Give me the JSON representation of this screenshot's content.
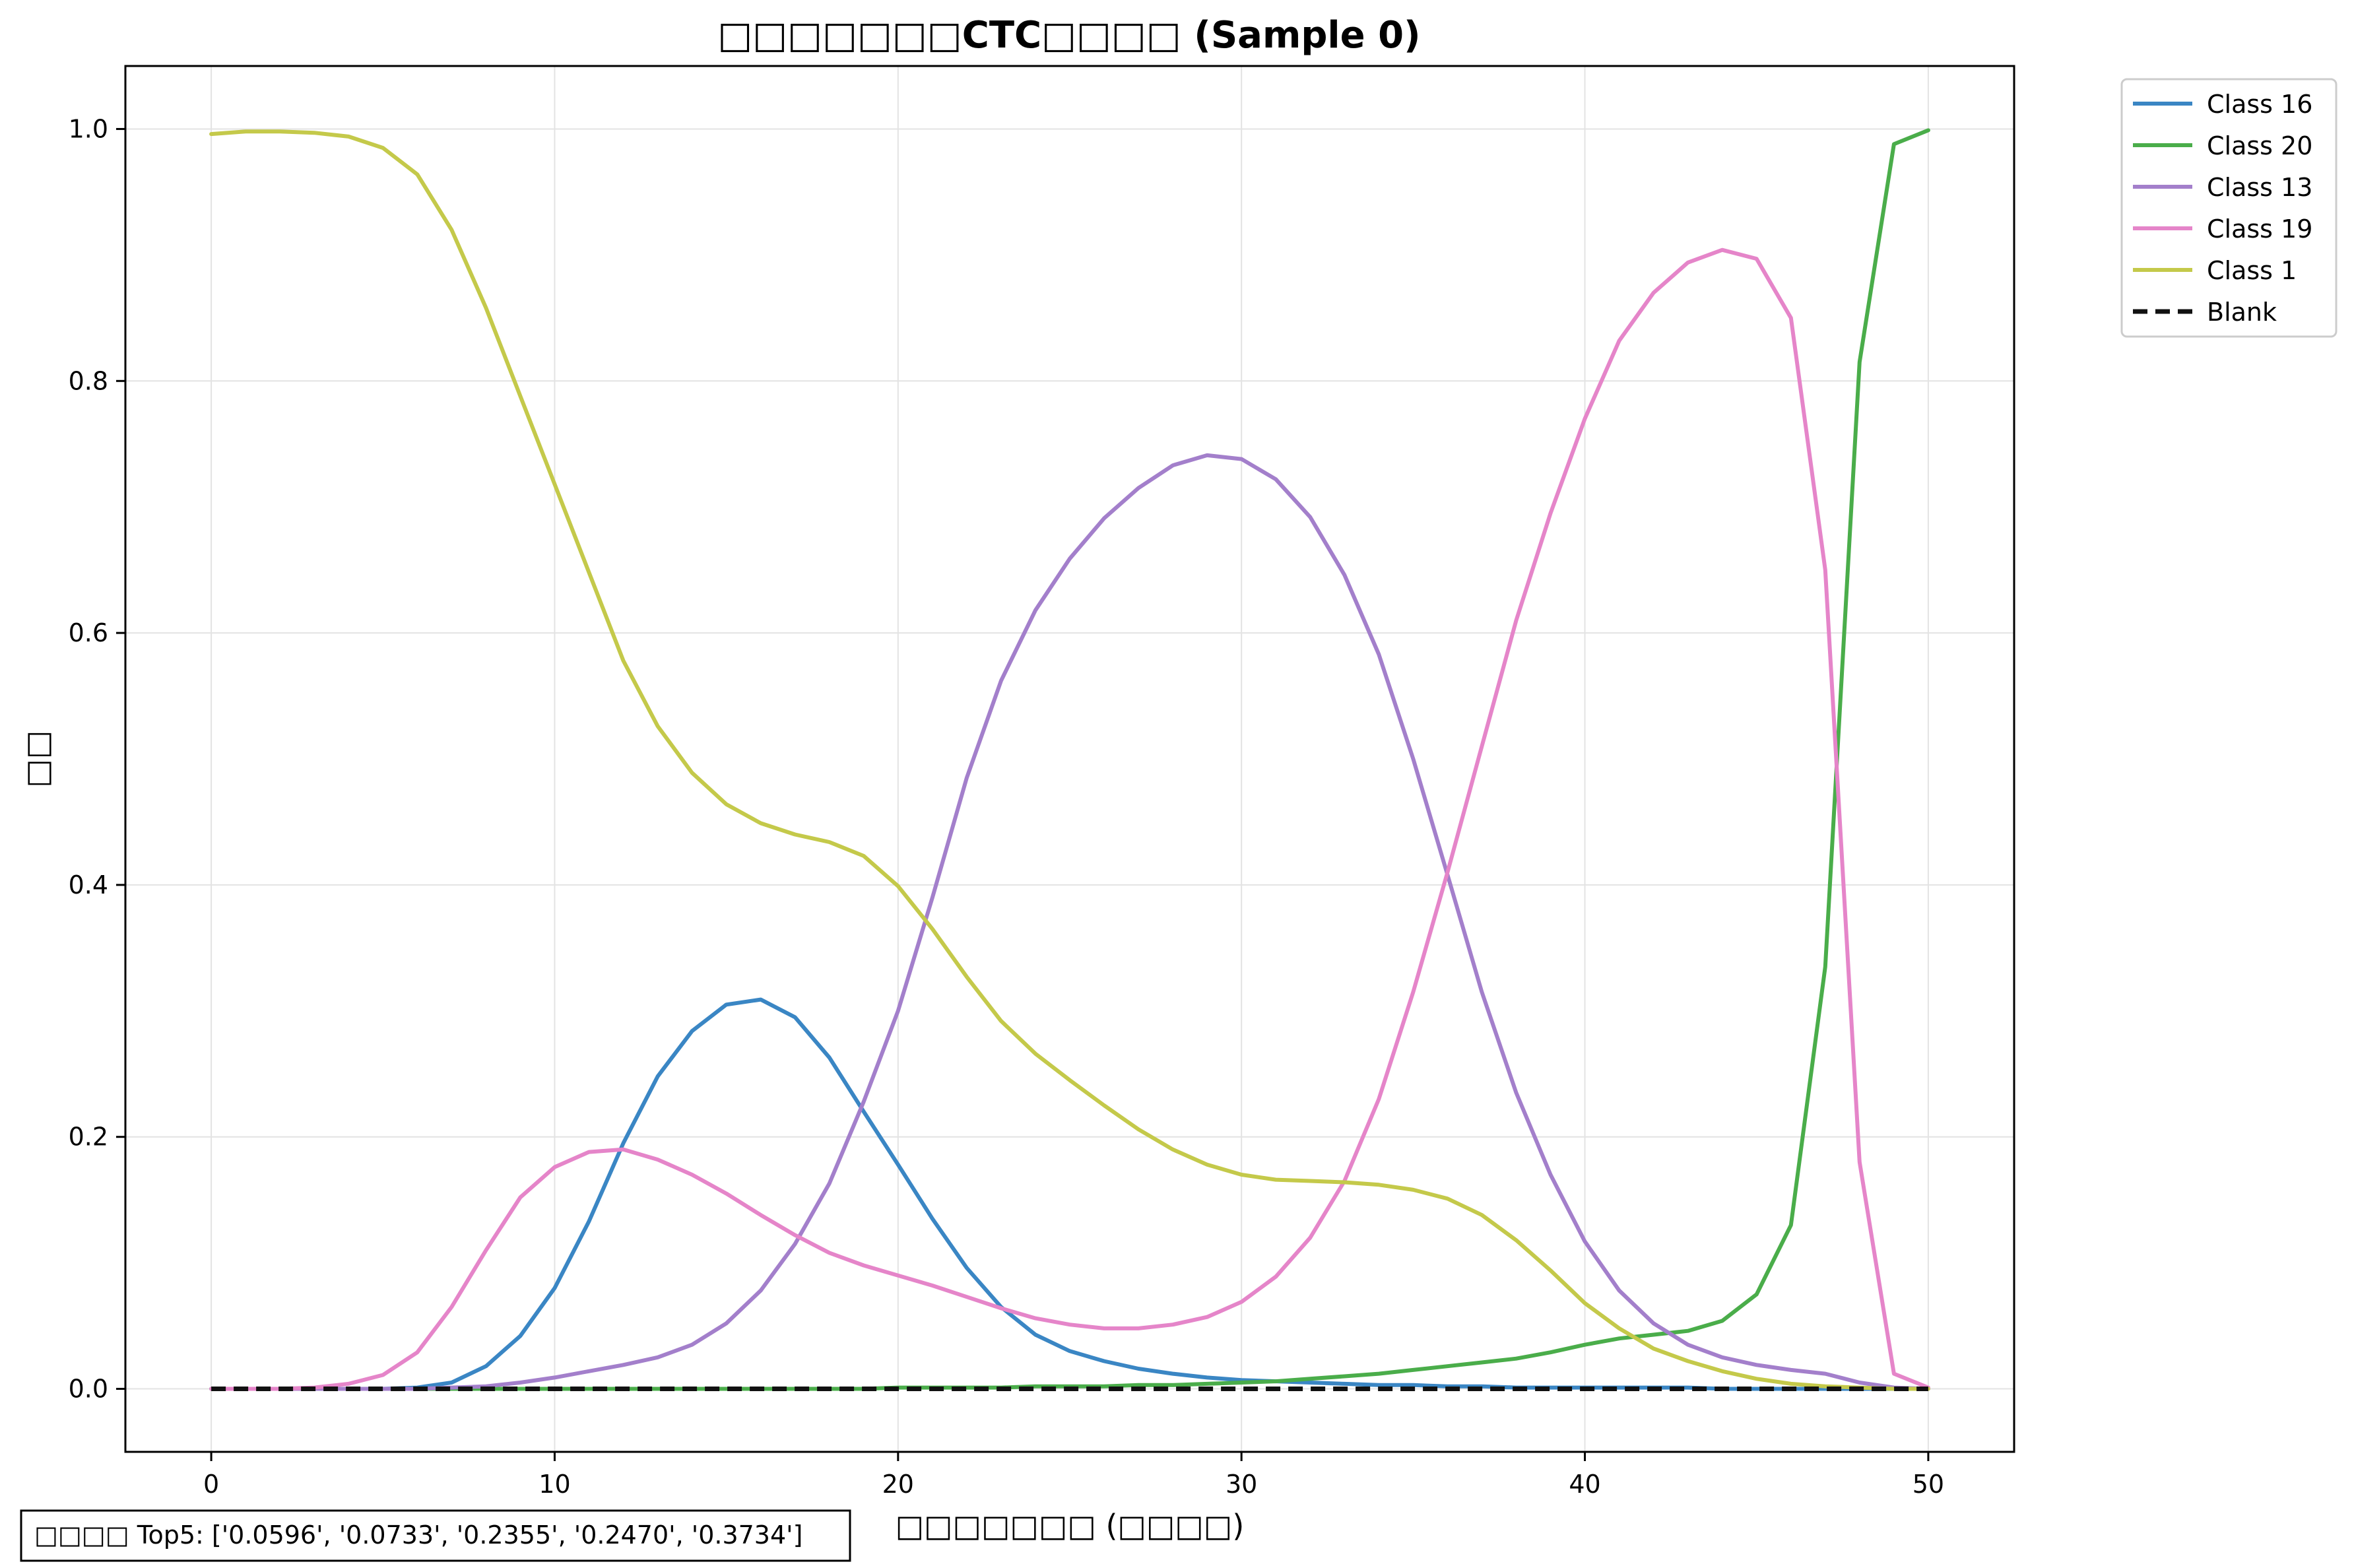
{
  "chart_data": {
    "type": "line",
    "title": "□□□□□□□CTC□□□□ (Sample 0)",
    "xlabel": "□□□□□□□ (□□□□)",
    "ylabel": "□□",
    "xlim": [
      -2.5,
      52.5
    ],
    "ylim": [
      -0.05,
      1.05
    ],
    "xticks": [
      0,
      10,
      20,
      30,
      40,
      50
    ],
    "xtick_labels": [
      "0",
      "10",
      "20",
      "30",
      "40",
      "50"
    ],
    "yticks": [
      0.0,
      0.2,
      0.4,
      0.6,
      0.8,
      1.0
    ],
    "ytick_labels": [
      "0.0",
      "0.2",
      "0.4",
      "0.6",
      "0.8",
      "1.0"
    ],
    "grid": true,
    "legend_position": "outside top-right",
    "x": [
      0,
      1,
      2,
      3,
      4,
      5,
      6,
      7,
      8,
      9,
      10,
      11,
      12,
      13,
      14,
      15,
      16,
      17,
      18,
      19,
      20,
      21,
      22,
      23,
      24,
      25,
      26,
      27,
      28,
      29,
      30,
      31,
      32,
      33,
      34,
      35,
      36,
      37,
      38,
      39,
      40,
      41,
      42,
      43,
      44,
      45,
      46,
      47,
      48,
      49,
      50
    ],
    "series": [
      {
        "name": "Class 16",
        "color": "#3a86c4",
        "dash": "solid",
        "values": [
          0,
          0,
          0,
          0,
          0,
          0,
          0.001,
          0.005,
          0.018,
          0.042,
          0.08,
          0.133,
          0.195,
          0.248,
          0.284,
          0.305,
          0.309,
          0.295,
          0.263,
          0.22,
          0.178,
          0.135,
          0.096,
          0.065,
          0.043,
          0.03,
          0.022,
          0.016,
          0.012,
          0.009,
          0.007,
          0.006,
          0.005,
          0.004,
          0.003,
          0.003,
          0.002,
          0.002,
          0.001,
          0.001,
          0.001,
          0.001,
          0.001,
          0.001,
          0,
          0,
          0,
          0,
          0,
          0,
          0
        ]
      },
      {
        "name": "Class 20",
        "color": "#4aad4a",
        "dash": "solid",
        "values": [
          0,
          0,
          0,
          0,
          0,
          0,
          0,
          0,
          0,
          0,
          0,
          0,
          0,
          0,
          0,
          0,
          0,
          0,
          0,
          0,
          0.001,
          0.001,
          0.001,
          0.001,
          0.002,
          0.002,
          0.002,
          0.003,
          0.003,
          0.004,
          0.005,
          0.006,
          0.008,
          0.01,
          0.012,
          0.015,
          0.018,
          0.021,
          0.024,
          0.029,
          0.035,
          0.04,
          0.043,
          0.046,
          0.054,
          0.075,
          0.13,
          0.335,
          0.815,
          0.988,
          0.999
        ]
      },
      {
        "name": "Class 13",
        "color": "#a37fcb",
        "dash": "solid",
        "values": [
          0,
          0,
          0,
          0,
          0,
          0,
          0,
          0.001,
          0.002,
          0.005,
          0.009,
          0.014,
          0.019,
          0.025,
          0.035,
          0.052,
          0.078,
          0.115,
          0.163,
          0.228,
          0.3,
          0.39,
          0.485,
          0.562,
          0.618,
          0.659,
          0.691,
          0.715,
          0.733,
          0.741,
          0.738,
          0.722,
          0.692,
          0.646,
          0.583,
          0.5,
          0.408,
          0.315,
          0.235,
          0.17,
          0.117,
          0.078,
          0.052,
          0.035,
          0.025,
          0.019,
          0.015,
          0.012,
          0.005,
          0.001,
          0
        ]
      },
      {
        "name": "Class 19",
        "color": "#e585c9",
        "dash": "solid",
        "values": [
          0,
          0,
          0,
          0.001,
          0.004,
          0.011,
          0.029,
          0.065,
          0.11,
          0.152,
          0.176,
          0.188,
          0.19,
          0.182,
          0.17,
          0.155,
          0.138,
          0.122,
          0.108,
          0.098,
          0.09,
          0.082,
          0.073,
          0.064,
          0.056,
          0.051,
          0.048,
          0.048,
          0.051,
          0.057,
          0.069,
          0.089,
          0.12,
          0.165,
          0.23,
          0.315,
          0.41,
          0.51,
          0.61,
          0.695,
          0.77,
          0.832,
          0.87,
          0.894,
          0.904,
          0.897,
          0.85,
          0.65,
          0.18,
          0.012,
          0.001
        ]
      },
      {
        "name": "Class 1",
        "color": "#c4c94a",
        "dash": "solid",
        "values": [
          0.996,
          0.998,
          0.998,
          0.997,
          0.994,
          0.985,
          0.964,
          0.92,
          0.858,
          0.788,
          0.718,
          0.648,
          0.578,
          0.526,
          0.489,
          0.464,
          0.449,
          0.44,
          0.434,
          0.423,
          0.399,
          0.365,
          0.327,
          0.292,
          0.266,
          0.245,
          0.225,
          0.206,
          0.19,
          0.178,
          0.17,
          0.166,
          0.165,
          0.164,
          0.162,
          0.158,
          0.151,
          0.138,
          0.118,
          0.094,
          0.068,
          0.048,
          0.032,
          0.022,
          0.014,
          0.008,
          0.004,
          0.002,
          0.001,
          0,
          0
        ]
      },
      {
        "name": "Blank",
        "color": "#111111",
        "dash": "dashed",
        "values": [
          0,
          0,
          0,
          0,
          0,
          0,
          0,
          0,
          0,
          0,
          0,
          0,
          0,
          0,
          0,
          0,
          0,
          0,
          0,
          0,
          0,
          0,
          0,
          0,
          0,
          0,
          0,
          0,
          0,
          0,
          0,
          0,
          0,
          0,
          0,
          0,
          0,
          0,
          0,
          0,
          0,
          0,
          0,
          0,
          0,
          0,
          0,
          0,
          0,
          0,
          0
        ]
      }
    ],
    "annotation": "□□□□ Top5: ['0.0596', '0.0733', '0.2355', '0.2470', '0.3734']"
  }
}
